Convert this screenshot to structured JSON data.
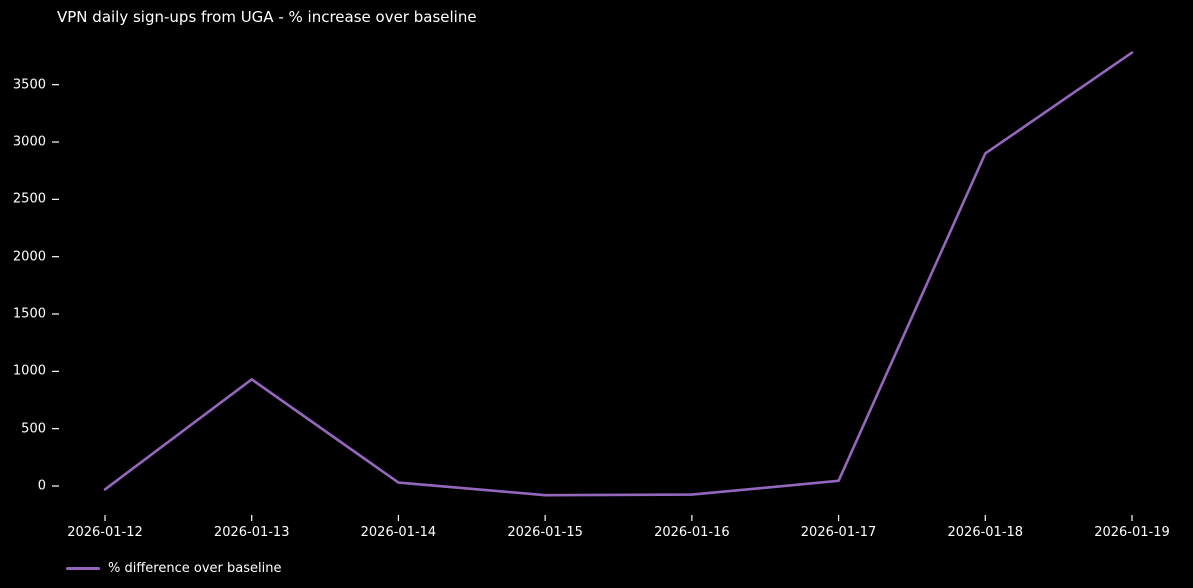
{
  "chart_data": {
    "type": "line",
    "title": "VPN daily sign-ups from UGA - % increase over baseline",
    "x": [
      "2026-01-12",
      "2026-01-13",
      "2026-01-14",
      "2026-01-15",
      "2026-01-16",
      "2026-01-17",
      "2026-01-18",
      "2026-01-19"
    ],
    "series": [
      {
        "name": "% difference over baseline",
        "color": "#9467bd",
        "values": [
          -30,
          930,
          30,
          -80,
          -75,
          45,
          2900,
          3780
        ]
      }
    ],
    "yticks": [
      0,
      500,
      1000,
      1500,
      2000,
      2500,
      3000,
      3500
    ],
    "ylim": [
      -270,
      3970
    ],
    "xlabel": "",
    "ylabel": "",
    "grid": false,
    "legend_position": "lower-left",
    "colors": {
      "background": "#000000",
      "text": "#ffffff",
      "tick": "#ffffff"
    }
  }
}
